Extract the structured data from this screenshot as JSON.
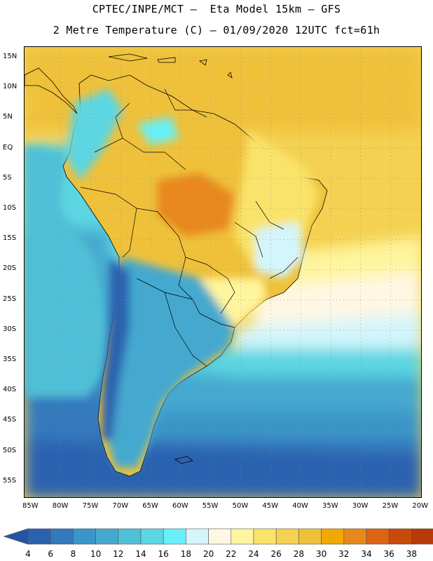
{
  "title_line1": "CPTEC/INPE/MCT –  Eta Model 15km – GFS",
  "title_line2": "2 Metre Temperature (C) – 01/09/2020 12UTC fct=61h",
  "lat_labels": [
    "15N",
    "10N",
    "5N",
    "EQ",
    "5S",
    "10S",
    "15S",
    "20S",
    "25S",
    "30S",
    "35S",
    "40S",
    "45S",
    "50S",
    "55S"
  ],
  "lon_labels": [
    "85W",
    "80W",
    "75W",
    "70W",
    "65W",
    "60W",
    "55W",
    "50W",
    "45W",
    "40W",
    "35W",
    "30W",
    "25W",
    "20W"
  ],
  "colorbar": {
    "labels": [
      "4",
      "6",
      "8",
      "10",
      "12",
      "14",
      "16",
      "18",
      "20",
      "22",
      "24",
      "26",
      "28",
      "30",
      "32",
      "34",
      "36",
      "38"
    ],
    "colors": [
      "#2b62b0",
      "#3479bd",
      "#3a95c8",
      "#45a9cf",
      "#4fc0d7",
      "#5cd6e2",
      "#68f0f8",
      "#d3f5fb",
      "#fff7e3",
      "#fff59e",
      "#f9e36a",
      "#f4d150",
      "#efc13a",
      "#f1a800",
      "#e8871c",
      "#dc6412",
      "#c84a0a",
      "#b83a0a"
    ],
    "under_color": "#2055a8",
    "over_color": "#b33a12"
  }
}
